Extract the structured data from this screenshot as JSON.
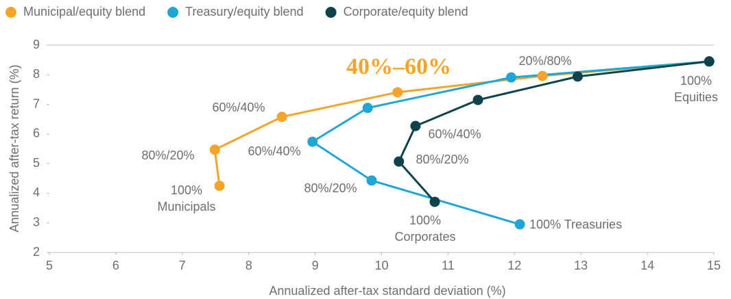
{
  "chart_data": {
    "type": "line",
    "x_label": "Annualized after-tax standard deviation (%)",
    "y_label": "Annualized after-tax return (%)",
    "xlim": [
      5,
      15
    ],
    "xticks": [
      5,
      6,
      7,
      8,
      9,
      10,
      11,
      12,
      13,
      14,
      15
    ],
    "ylim": [
      2,
      9
    ],
    "yticks": [
      2,
      3,
      4,
      5,
      6,
      7,
      8,
      9
    ],
    "grid": false,
    "legend": "top-left",
    "series": [
      {
        "name": "Municipal/equity blend",
        "color": "#f4a428",
        "x": [
          7.56,
          7.49,
          8.5,
          10.24,
          12.42,
          14.93
        ],
        "values": [
          4.25,
          5.47,
          6.58,
          7.41,
          7.96,
          8.45
        ]
      },
      {
        "name": "Treasury/equity blend",
        "color": "#1ea6d6",
        "x": [
          12.08,
          9.85,
          8.96,
          9.79,
          11.95,
          14.93
        ],
        "values": [
          2.95,
          4.43,
          5.74,
          6.88,
          7.91,
          8.45
        ]
      },
      {
        "name": "Corporate/equity blend",
        "color": "#0f434c",
        "x": [
          10.8,
          10.26,
          10.51,
          11.45,
          12.95,
          14.93
        ],
        "values": [
          3.71,
          5.07,
          6.27,
          7.15,
          7.94,
          8.45
        ]
      }
    ],
    "annotations": [
      {
        "lines": [
          "40%–60%"
        ]
      },
      {
        "lines": [
          "20%/80%"
        ]
      },
      {
        "lines": [
          "100%",
          "Equities"
        ]
      },
      {
        "lines": [
          "60%/40%"
        ]
      },
      {
        "lines": [
          "80%/20%"
        ]
      },
      {
        "lines": [
          "100%",
          "Municipals"
        ]
      },
      {
        "lines": [
          "60%/40%"
        ]
      },
      {
        "lines": [
          "80%/20%"
        ]
      },
      {
        "lines": [
          "100%",
          "Corporates"
        ]
      },
      {
        "lines": [
          "100% Treasuries"
        ]
      },
      {
        "lines": [
          "60%/40%"
        ]
      },
      {
        "lines": [
          "80%/20%"
        ]
      }
    ]
  }
}
